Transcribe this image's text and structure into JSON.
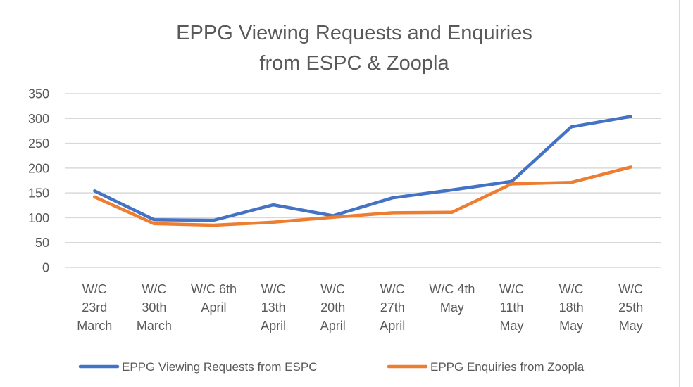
{
  "chart_data": {
    "type": "line",
    "title_lines": [
      "EPPG Viewing Requests and Enquiries",
      "from ESPC & Zoopla"
    ],
    "categories": [
      [
        "W/C",
        "23rd",
        "March"
      ],
      [
        "W/C",
        "30th",
        "March"
      ],
      [
        "W/C 6th",
        "April"
      ],
      [
        "W/C",
        "13th",
        "April"
      ],
      [
        "W/C",
        "20th",
        "April"
      ],
      [
        "W/C",
        "27th",
        "April"
      ],
      [
        "W/C 4th",
        "May"
      ],
      [
        "W/C",
        "11th",
        "May"
      ],
      [
        "W/C",
        "18th",
        "May"
      ],
      [
        "W/C",
        "25th",
        "May"
      ]
    ],
    "series": [
      {
        "name": "EPPG Viewing Requests from ESPC",
        "color": "#4472C4",
        "values": [
          154,
          96,
          95,
          126,
          104,
          140,
          156,
          173,
          283,
          304
        ]
      },
      {
        "name": "EPPG Enquiries from Zoopla",
        "color": "#ED7D31",
        "values": [
          142,
          88,
          85,
          91,
          101,
          110,
          111,
          168,
          171,
          202
        ]
      }
    ],
    "ylim": [
      0,
      350
    ],
    "yticks": [
      0,
      50,
      100,
      150,
      200,
      250,
      300,
      350
    ],
    "grid": true,
    "legend": "bottom",
    "gridline_color": "#d9d9d9"
  }
}
